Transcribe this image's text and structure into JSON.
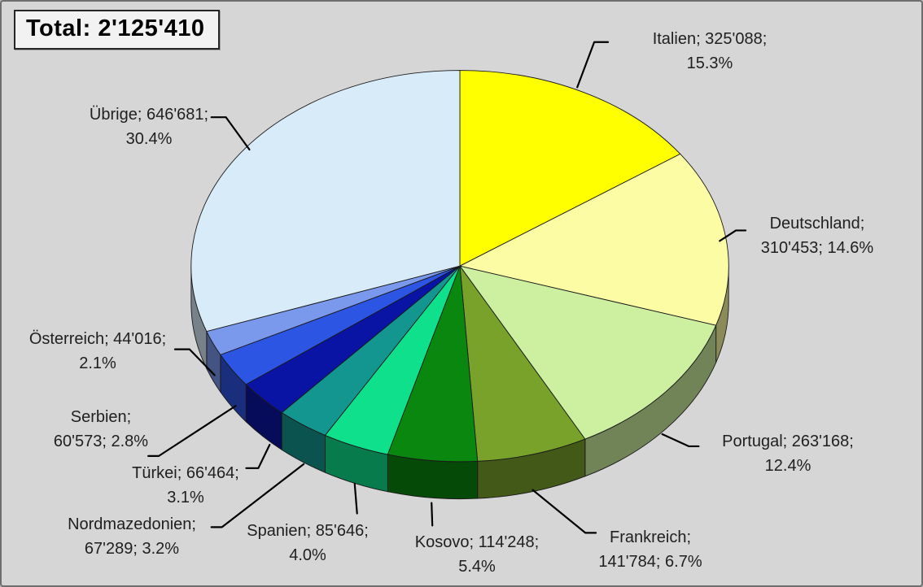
{
  "total_box": {
    "label": "Total: 2'125'410"
  },
  "chart_data": {
    "type": "pie",
    "style": "3d",
    "title": "Total: 2'125'410",
    "total": 2125410,
    "start_angle_deg": 0,
    "direction": "clockwise",
    "background": "#D6D6D6",
    "legend": "none",
    "slices": [
      {
        "label": "Italien",
        "value": 325088,
        "pct": 15.3,
        "color": "#FFFF00",
        "line1": "Italien; 325'088;",
        "line2": "15.3%"
      },
      {
        "label": "Deutschland",
        "value": 310453,
        "pct": 14.6,
        "color": "#FCFCA4",
        "line1": "Deutschland;",
        "line2": "310'453; 14.6%"
      },
      {
        "label": "Portugal",
        "value": 263168,
        "pct": 12.4,
        "color": "#CDF0A0",
        "line1": "Portugal; 263'168;",
        "line2": "12.4%"
      },
      {
        "label": "Frankreich",
        "value": 141784,
        "pct": 6.7,
        "color": "#78A22A",
        "line1": "Frankreich;",
        "line2": "141'784; 6.7%"
      },
      {
        "label": "Kosovo",
        "value": 114248,
        "pct": 5.4,
        "color": "#0A870E",
        "line1": "Kosovo; 114'248;",
        "line2": "5.4%"
      },
      {
        "label": "Spanien",
        "value": 85646,
        "pct": 4.0,
        "color": "#0EE08C",
        "line1": "Spanien; 85'646;",
        "line2": "4.0%"
      },
      {
        "label": "Nordmazedonien",
        "value": 67289,
        "pct": 3.2,
        "color": "#12968F",
        "line1": "Nordmazedonien;",
        "line2": "67'289; 3.2%"
      },
      {
        "label": "Türkei",
        "value": 66464,
        "pct": 3.1,
        "color": "#0A14A4",
        "line1": "Türkei; 66'464;",
        "line2": "3.1%"
      },
      {
        "label": "Serbien",
        "value": 60573,
        "pct": 2.8,
        "color": "#2D55E3",
        "line1": "Serbien;",
        "line2": "60'573; 2.8%"
      },
      {
        "label": "Österreich",
        "value": 44016,
        "pct": 2.1,
        "color": "#7A99EC",
        "line1": "Österreich; 44'016;",
        "line2": "2.1%"
      },
      {
        "label": "Übrige",
        "value": 646681,
        "pct": 30.4,
        "color": "#D8EBF9",
        "line1": "Übrige; 646'681;",
        "line2": "30.4%"
      }
    ]
  }
}
